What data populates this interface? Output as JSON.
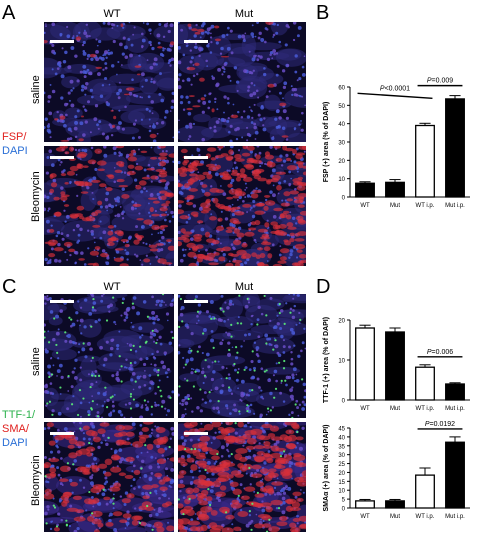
{
  "panel_labels": {
    "A": "A",
    "B": "B",
    "C": "C",
    "D": "D"
  },
  "panel_a": {
    "col_titles": [
      "WT",
      "Mut"
    ],
    "row_labels": [
      "saline",
      "Bleomycin"
    ],
    "stain": [
      {
        "text": "FSP",
        "color": "#e0201e"
      },
      {
        "text": "/",
        "color": "#e0201e"
      },
      {
        "text": "DAPI",
        "color": "#2a6fd6"
      }
    ]
  },
  "panel_c": {
    "col_titles": [
      "WT",
      "Mut"
    ],
    "row_labels": [
      "saline",
      "Bleomycin"
    ],
    "stain": [
      {
        "text": "TTF-1/",
        "color": "#2bb24c"
      },
      {
        "text": "SMA/",
        "color": "#e0201e"
      },
      {
        "text": "DAPI",
        "color": "#2a6fd6"
      }
    ]
  },
  "chart_data": [
    {
      "id": "B",
      "type": "bar",
      "categories": [
        "WT",
        "Mut",
        "WT i.p.",
        "Mut i.p."
      ],
      "values": [
        7.5,
        8,
        39,
        53.5
      ],
      "errors": [
        0.8,
        1.5,
        1.2,
        1.8
      ],
      "fills": [
        "#000000",
        "#000000",
        "#ffffff",
        "#000000"
      ],
      "ylabel": "FSP (+) area (% of DAPI)",
      "ylim": [
        0,
        60
      ],
      "yticks": [
        0,
        10,
        20,
        30,
        40,
        50,
        60
      ],
      "annotations": [
        {
          "text": "P<0.0001",
          "from": 0,
          "to": 2
        },
        {
          "text": "P=0.009",
          "from": 2,
          "to": 3
        }
      ]
    },
    {
      "id": "D1",
      "type": "bar",
      "categories": [
        "WT",
        "Mut",
        "WT i.p.",
        "Mut i.p."
      ],
      "values": [
        18,
        17,
        8.2,
        4
      ],
      "errors": [
        0.7,
        1,
        0.6,
        0.3
      ],
      "fills": [
        "#ffffff",
        "#000000",
        "#ffffff",
        "#000000"
      ],
      "ylabel": "TTF-1 (+) area (% of DAPI)",
      "ylim": [
        0,
        20
      ],
      "yticks": [
        0,
        10,
        20
      ],
      "annotations": [
        {
          "text": "P=0.006",
          "from": 2,
          "to": 3
        }
      ]
    },
    {
      "id": "D2",
      "type": "bar",
      "categories": [
        "WT",
        "Mut",
        "WT i.p.",
        "Mut i.p."
      ],
      "values": [
        4,
        4,
        18.5,
        37
      ],
      "errors": [
        0.8,
        0.8,
        4,
        3
      ],
      "fills": [
        "#ffffff",
        "#000000",
        "#ffffff",
        "#000000"
      ],
      "ylabel": "SMAα (+) area (% of DAPI)",
      "ylim": [
        0,
        45
      ],
      "yticks": [
        0,
        5,
        10,
        15,
        20,
        25,
        30,
        35,
        40,
        45
      ],
      "annotations": [
        {
          "text": "P=0.0192",
          "from": 2,
          "to": 3
        }
      ]
    }
  ]
}
